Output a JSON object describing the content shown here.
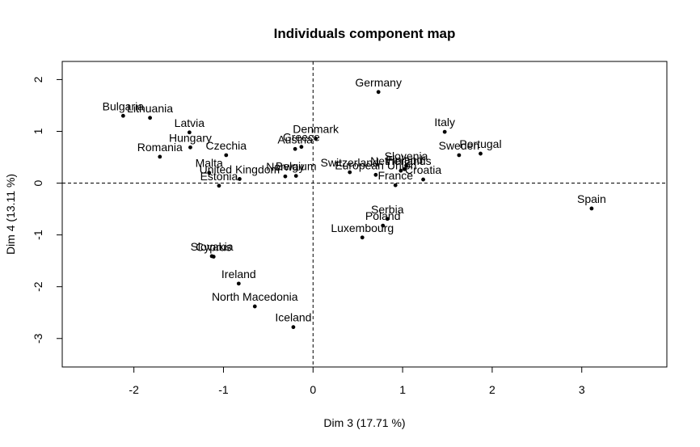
{
  "chart_data": {
    "type": "scatter",
    "title": "Individuals component map",
    "xlabel": "Dim 3 (17.71 %)",
    "ylabel": "Dim 4 (13.11 %)",
    "xlim": [
      -2.8,
      3.95
    ],
    "ylim": [
      -3.55,
      2.35
    ],
    "xticks": [
      -2,
      -1,
      0,
      1,
      2,
      3
    ],
    "yticks": [
      -3,
      -2,
      -1,
      0,
      1,
      2
    ],
    "reference_lines": {
      "x": 0,
      "y": 0,
      "style": "dashed"
    },
    "grid": false,
    "legend": "none",
    "point_color": "#000000",
    "points": [
      {
        "label": "Bulgaria",
        "x": -2.12,
        "y": 1.3
      },
      {
        "label": "Lithuania",
        "x": -1.82,
        "y": 1.26
      },
      {
        "label": "Latvia",
        "x": -1.38,
        "y": 0.98
      },
      {
        "label": "Hungary",
        "x": -1.37,
        "y": 0.69
      },
      {
        "label": "Romania",
        "x": -1.71,
        "y": 0.51
      },
      {
        "label": "Czechia",
        "x": -0.97,
        "y": 0.54
      },
      {
        "label": "Malta",
        "x": -1.16,
        "y": 0.2
      },
      {
        "label": "United Kingdom",
        "x": -0.82,
        "y": 0.08
      },
      {
        "label": "Estonia",
        "x": -1.05,
        "y": -0.05
      },
      {
        "label": "Norway",
        "x": -0.31,
        "y": 0.13
      },
      {
        "label": "Belgium",
        "x": -0.19,
        "y": 0.14
      },
      {
        "label": "Denmark",
        "x": 0.03,
        "y": 0.86
      },
      {
        "label": "Greece",
        "x": -0.13,
        "y": 0.7
      },
      {
        "label": "Austria",
        "x": -0.2,
        "y": 0.66
      },
      {
        "label": "Germany",
        "x": 0.73,
        "y": 1.76
      },
      {
        "label": "Switzerland",
        "x": 0.41,
        "y": 0.21
      },
      {
        "label": "European Union",
        "x": 0.7,
        "y": 0.16
      },
      {
        "label": "Netherlands",
        "x": 0.98,
        "y": 0.24
      },
      {
        "label": "Finland",
        "x": 1.02,
        "y": 0.27
      },
      {
        "label": "Slovenia",
        "x": 1.04,
        "y": 0.34
      },
      {
        "label": "France",
        "x": 0.92,
        "y": -0.04
      },
      {
        "label": "Croatia",
        "x": 1.23,
        "y": 0.07
      },
      {
        "label": "Italy",
        "x": 1.47,
        "y": 0.99
      },
      {
        "label": "Sweden",
        "x": 1.63,
        "y": 0.54
      },
      {
        "label": "Portugal",
        "x": 1.87,
        "y": 0.57
      },
      {
        "label": "Spain",
        "x": 3.11,
        "y": -0.49
      },
      {
        "label": "Serbia",
        "x": 0.83,
        "y": -0.69
      },
      {
        "label": "Poland",
        "x": 0.78,
        "y": -0.82
      },
      {
        "label": "Luxembourg",
        "x": 0.55,
        "y": -1.05
      },
      {
        "label": "Cyprus",
        "x": -1.11,
        "y": -1.42
      },
      {
        "label": "Slovakia",
        "x": -1.13,
        "y": -1.41
      },
      {
        "label": "Ireland",
        "x": -0.83,
        "y": -1.94
      },
      {
        "label": "North Macedonia",
        "x": -0.65,
        "y": -2.38
      },
      {
        "label": "Iceland",
        "x": -0.22,
        "y": -2.78
      }
    ]
  }
}
